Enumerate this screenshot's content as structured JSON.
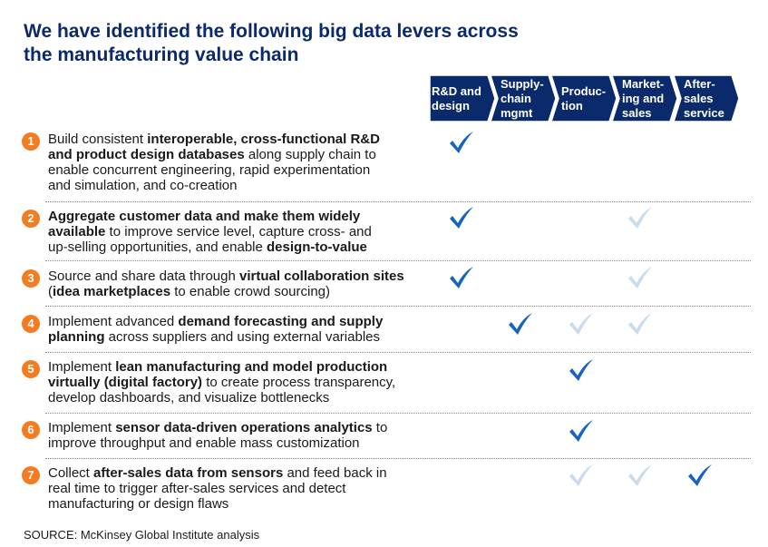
{
  "title": {
    "line1": "We have identified the following big data levers across",
    "line2": "the manufacturing value chain"
  },
  "colors": {
    "title": "#0b2a6b",
    "chevron_fill": "#0b2a6b",
    "badge": "#f47c20",
    "check_primary": "#1565c0",
    "check_secondary": "#c8dcf0"
  },
  "stages": [
    {
      "line1": "R&D and",
      "line2": "design",
      "line3": ""
    },
    {
      "line1": "Supply-",
      "line2": "chain",
      "line3": "mgmt"
    },
    {
      "line1": "Produc-",
      "line2": "tion",
      "line3": ""
    },
    {
      "line1": "Market-",
      "line2": "ing and",
      "line3": "sales"
    },
    {
      "line1": "After-",
      "line2": "sales",
      "line3": "service"
    }
  ],
  "levers": [
    {
      "num": "1",
      "lines": [
        [
          {
            "t": "Build consistent ",
            "b": false
          },
          {
            "t": "interoperable, cross-functional R&D",
            "b": true
          }
        ],
        [
          {
            "t": "and product design databases",
            "b": true
          },
          {
            "t": " along supply chain to",
            "b": false
          }
        ],
        [
          {
            "t": "enable concurrent engineering, rapid experimentation",
            "b": false
          }
        ],
        [
          {
            "t": "and simulation, and co-creation",
            "b": false
          }
        ]
      ],
      "checks": [
        "primary",
        "none",
        "none",
        "none",
        "none"
      ]
    },
    {
      "num": "2",
      "lines": [
        [
          {
            "t": "Aggregate customer data and make them widely",
            "b": true
          }
        ],
        [
          {
            "t": "available",
            "b": true
          },
          {
            "t": " to improve service level, capture cross- and",
            "b": false
          }
        ],
        [
          {
            "t": "up-selling opportunities, and enable ",
            "b": false
          },
          {
            "t": "design-to-value",
            "b": true
          }
        ]
      ],
      "checks": [
        "primary",
        "none",
        "none",
        "secondary",
        "none"
      ]
    },
    {
      "num": "3",
      "lines": [
        [
          {
            "t": "Source and share data through ",
            "b": false
          },
          {
            "t": "virtual collaboration sites",
            "b": true
          }
        ],
        [
          {
            "t": "(",
            "b": false
          },
          {
            "t": "idea marketplaces",
            "b": true
          },
          {
            "t": " to enable crowd sourcing)",
            "b": false
          }
        ]
      ],
      "checks": [
        "primary",
        "none",
        "none",
        "secondary",
        "none"
      ]
    },
    {
      "num": "4",
      "lines": [
        [
          {
            "t": "Implement advanced ",
            "b": false
          },
          {
            "t": "demand forecasting and supply",
            "b": true
          }
        ],
        [
          {
            "t": "planning",
            "b": true
          },
          {
            "t": " across suppliers and using external variables",
            "b": false
          }
        ]
      ],
      "checks": [
        "none",
        "primary",
        "secondary",
        "secondary",
        "none"
      ]
    },
    {
      "num": "5",
      "lines": [
        [
          {
            "t": "Implement ",
            "b": false
          },
          {
            "t": "lean manufacturing and model production",
            "b": true
          }
        ],
        [
          {
            "t": "virtually (digital factory)",
            "b": true
          },
          {
            "t": " to create process transparency,",
            "b": false
          }
        ],
        [
          {
            "t": "develop dashboards, and visualize bottlenecks",
            "b": false
          }
        ]
      ],
      "checks": [
        "none",
        "none",
        "primary",
        "none",
        "none"
      ]
    },
    {
      "num": "6",
      "lines": [
        [
          {
            "t": "Implement ",
            "b": false
          },
          {
            "t": "sensor data-driven operations analytics",
            "b": true
          },
          {
            "t": " to",
            "b": false
          }
        ],
        [
          {
            "t": "improve throughput and enable mass customization",
            "b": false
          }
        ]
      ],
      "checks": [
        "none",
        "none",
        "primary",
        "none",
        "none"
      ]
    },
    {
      "num": "7",
      "lines": [
        [
          {
            "t": "Collect ",
            "b": false
          },
          {
            "t": "after-sales data from sensors",
            "b": true
          },
          {
            "t": " and feed back in",
            "b": false
          }
        ],
        [
          {
            "t": "real time to trigger after-sales services and detect",
            "b": false
          }
        ],
        [
          {
            "t": "manufacturing or design flaws",
            "b": false
          }
        ]
      ],
      "checks": [
        "none",
        "none",
        "secondary",
        "secondary",
        "primary"
      ]
    }
  ],
  "source": "SOURCE: McKinsey Global Institute analysis"
}
